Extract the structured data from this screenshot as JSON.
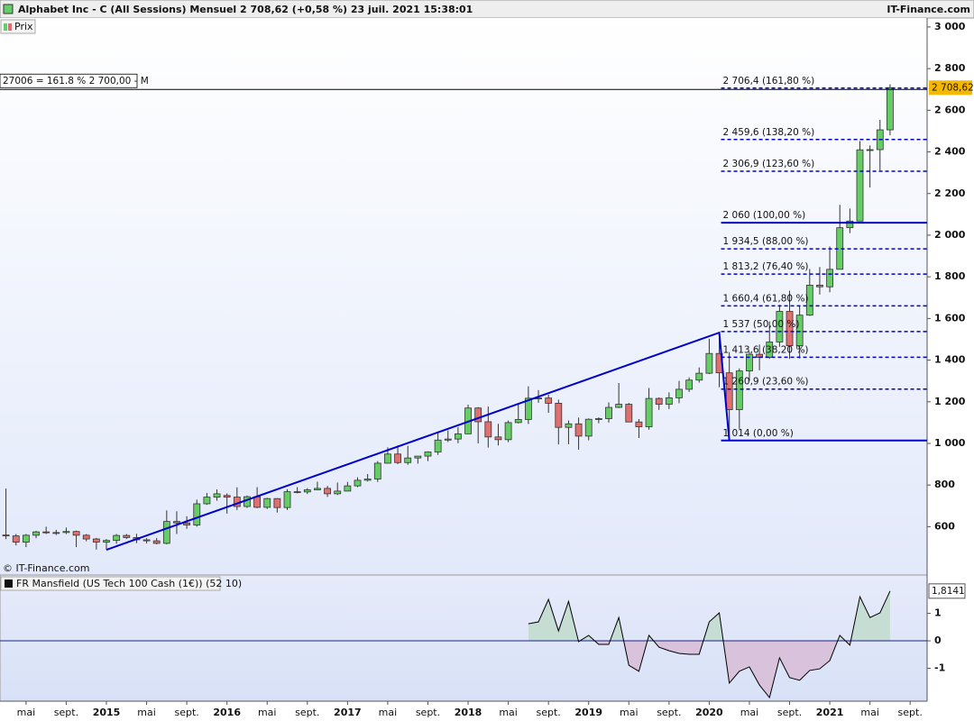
{
  "chart_data": [
    {
      "type": "candlestick",
      "title": "Alphabet Inc - C (All Sessions) Mensuel 2 708,62 (+0,58 %) 23 juil. 2021 15:38:01",
      "source": "IT-Finance.com",
      "legend": "Prix",
      "copyright": "© IT-Finance.com",
      "categories": [
        null,
        null,
        "mai",
        null,
        null,
        null,
        "sept.",
        null,
        null,
        null,
        "2015",
        null,
        null,
        null,
        "mai",
        null,
        null,
        null,
        "sept.",
        null,
        null,
        null,
        "2016",
        null,
        null,
        null,
        "mai",
        null,
        null,
        null,
        "sept.",
        null,
        null,
        null,
        "2017",
        null,
        null,
        null,
        "mai",
        null,
        null,
        null,
        "sept.",
        null,
        null,
        null,
        "2018",
        null,
        null,
        null,
        "mai",
        null,
        null,
        null,
        "sept.",
        null,
        null,
        null,
        "2019",
        null,
        null,
        null,
        "mai",
        null,
        null,
        null,
        "sept.",
        null,
        null,
        null,
        "2020",
        null,
        null,
        null,
        "mai",
        null,
        null,
        null,
        "sept.",
        null,
        null,
        null,
        "2021",
        null,
        null,
        null,
        "mai",
        null,
        null,
        null,
        "sept."
      ],
      "open": [
        560,
        556,
        526,
        559,
        575,
        571,
        572,
        577,
        559,
        541,
        526,
        534,
        558,
        548,
        537,
        532,
        520,
        625,
        618,
        608,
        710,
        742,
        750,
        742,
        697,
        744,
        693,
        735,
        692,
        768,
        767,
        777,
        784,
        758,
        771,
        796,
        823,
        829,
        905,
        949,
        908,
        930,
        939,
        959,
        1016,
        1021,
        1046,
        1170,
        1104,
        1031,
        1018,
        1100,
        1115,
        1217,
        1218,
        1193,
        1077,
        1094,
        1035,
        1116,
        1119,
        1173,
        1188,
        1103,
        1080,
        1216,
        1188,
        1219,
        1260,
        1304,
        1337,
        1432,
        1339,
        1162,
        1348,
        1428,
        1413,
        1487,
        1634,
        1469,
        1616,
        1760,
        1752,
        1836,
        2036,
        2068,
        2410,
        2411,
        2506,
        null,
        null
      ],
      "high": [
        783,
        565,
        565,
        580,
        600,
        585,
        596,
        581,
        565,
        546,
        540,
        565,
        565,
        566,
        545,
        546,
        678,
        674,
        650,
        730,
        762,
        779,
        760,
        789,
        750,
        790,
        739,
        737,
        780,
        790,
        785,
        816,
        796,
        812,
        815,
        837,
        853,
        915,
        981,
        990,
        988,
        940,
        962,
        1049,
        1062,
        1078,
        1186,
        1174,
        1177,
        1094,
        1110,
        1186,
        1274,
        1256,
        1234,
        1210,
        1110,
        1124,
        1120,
        1125,
        1197,
        1290,
        1194,
        1117,
        1266,
        1221,
        1245,
        1300,
        1317,
        1365,
        1503,
        1532,
        1438,
        1360,
        1440,
        1475,
        1586,
        1665,
        1733,
        1660,
        1838,
        1847,
        1946,
        2146,
        2128,
        2452,
        2431,
        2554,
        2725,
        null,
        null
      ],
      "low": [
        540,
        510,
        502,
        545,
        565,
        560,
        565,
        502,
        530,
        490,
        489,
        518,
        541,
        521,
        520,
        515,
        515,
        565,
        590,
        600,
        705,
        725,
        663,
        680,
        690,
        689,
        685,
        668,
        680,
        760,
        757,
        775,
        743,
        752,
        770,
        790,
        817,
        815,
        903,
        900,
        897,
        903,
        915,
        945,
        1007,
        1001,
        1045,
        1000,
        980,
        990,
        1006,
        1096,
        1093,
        1195,
        1147,
        995,
        996,
        970,
        1015,
        1097,
        1100,
        1170,
        1102,
        1026,
        1066,
        1161,
        1165,
        1193,
        1247,
        1292,
        1333,
        1270,
        1014,
        1070,
        1300,
        1351,
        1406,
        1464,
        1406,
        1408,
        1612,
        1715,
        1726,
        1836,
        2010,
        2068,
        2229,
        2311,
        2480,
        null,
        null
      ],
      "close": [
        556,
        526,
        559,
        575,
        571,
        572,
        577,
        559,
        541,
        526,
        534,
        558,
        548,
        537,
        532,
        520,
        625,
        618,
        608,
        710,
        742,
        758,
        742,
        697,
        744,
        693,
        735,
        692,
        768,
        767,
        777,
        784,
        758,
        771,
        796,
        823,
        829,
        905,
        949,
        908,
        930,
        939,
        959,
        1016,
        1021,
        1046,
        1170,
        1104,
        1031,
        1018,
        1100,
        1115,
        1217,
        1218,
        1193,
        1077,
        1094,
        1035,
        1116,
        1119,
        1173,
        1188,
        1103,
        1080,
        1216,
        1188,
        1219,
        1260,
        1304,
        1337,
        1432,
        1339,
        1162,
        1348,
        1428,
        1413,
        1487,
        1634,
        1469,
        1616,
        1760,
        1752,
        1836,
        2036,
        2068,
        2410,
        2411,
        2506,
        2708.62,
        null,
        null
      ],
      "up_color": "#66cc66",
      "down_color": "#e07070",
      "wick_color": "#333333",
      "ylim": [
        368,
        3043
      ],
      "yticks": [
        {
          "value": 3000,
          "label": "3 000"
        },
        {
          "value": 2800,
          "label": "2 800"
        },
        {
          "value": 2600,
          "label": "2 600"
        },
        {
          "value": 2400,
          "label": "2 400"
        },
        {
          "value": 2200,
          "label": "2 200"
        },
        {
          "value": 2000,
          "label": "2 000"
        },
        {
          "value": 1800,
          "label": "1 800"
        },
        {
          "value": 1600,
          "label": "1 600"
        },
        {
          "value": 1400,
          "label": "1 400"
        },
        {
          "value": 1200,
          "label": "1 200"
        },
        {
          "value": 1000,
          "label": "1 000"
        },
        800,
        600
      ],
      "last_label": "2 708,62",
      "last_label_color": "#f5b800",
      "fib_color": "#0000cc",
      "fib_levels": [
        {
          "value": 2706.4,
          "label": "2 706,4 (161,80 %)",
          "line_style": "dashed"
        },
        {
          "value": 2459.6,
          "label": "2 459,6 (138,20 %)",
          "line_style": "dashed"
        },
        {
          "value": 2306.9,
          "label": "2 306,9 (123,60 %)",
          "line_style": "dashed"
        },
        {
          "value": 2060,
          "label": "2 060 (100,00 %)",
          "line_style": "solid"
        },
        {
          "value": 1934.5,
          "label": "1 934,5 (88,00 %)",
          "line_style": "dashed"
        },
        {
          "value": 1813.2,
          "label": "1 813,2 (76,40 %)",
          "line_style": "dashed"
        },
        {
          "value": 1660.4,
          "label": "1 660,4 (61,80 %)",
          "line_style": "dashed"
        },
        {
          "value": 1537,
          "label": "1 537 (50,00 %)",
          "line_style": "dashed"
        },
        {
          "value": 1413.6,
          "label": "1 413,6 (38,20 %)",
          "line_style": "dashed"
        },
        {
          "value": 1260.9,
          "label": "1 260,9 (23,60 %)",
          "line_style": "dashed"
        },
        {
          "value": 1014,
          "label": "1 014 (0,00 %)",
          "line_style": "solid"
        }
      ],
      "alert": {
        "value": 2700,
        "label": "27006 = 161.8 % 2 700,00 - M"
      },
      "alert_color": "#000000"
    },
    {
      "type": "area",
      "title": "FR Mansfield (US Tech 100 Cash (1€)) (52 10)",
      "values": [
        null,
        null,
        null,
        null,
        null,
        null,
        null,
        null,
        null,
        null,
        null,
        null,
        null,
        null,
        null,
        null,
        null,
        null,
        null,
        null,
        null,
        null,
        null,
        null,
        null,
        null,
        null,
        null,
        null,
        null,
        null,
        null,
        null,
        null,
        null,
        null,
        null,
        null,
        null,
        null,
        null,
        null,
        null,
        null,
        null,
        null,
        null,
        null,
        null,
        null,
        null,
        null,
        0.62,
        0.69,
        1.51,
        0.36,
        1.44,
        -0.03,
        0.2,
        -0.13,
        -0.13,
        0.85,
        -0.89,
        -1.11,
        0.2,
        -0.23,
        -0.36,
        -0.46,
        -0.49,
        -0.49,
        0.69,
        1.02,
        -1.54,
        -1.11,
        -0.95,
        -1.61,
        -2.07,
        -0.62,
        -1.34,
        -1.44,
        -1.08,
        -1.02,
        -0.72,
        0.2,
        -0.16,
        1.61,
        0.85,
        1.02,
        1.8141,
        null,
        null
      ],
      "ylim": [
        -2.2,
        2.4
      ],
      "yticks": [
        1,
        0,
        -1
      ],
      "last_label": "1,8141",
      "reference_line": 0,
      "reference_color": "#1a237e",
      "line_color": "#000000",
      "positive_fill": "#c6ddd3",
      "negative_fill": "#d9c3dc"
    }
  ]
}
